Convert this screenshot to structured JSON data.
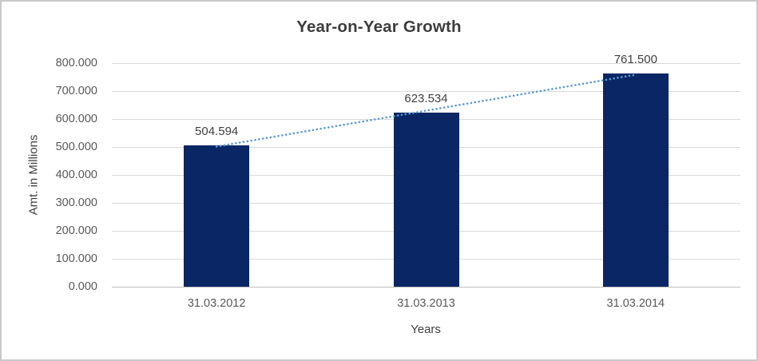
{
  "chart_data": {
    "type": "bar",
    "title": "Year-on-Year Growth",
    "xlabel": "Years",
    "ylabel": "Amt. in Millions",
    "categories": [
      "31.03.2012",
      "31.03.2013",
      "31.03.2014"
    ],
    "values": [
      504.594,
      623.534,
      761.5
    ],
    "data_labels": [
      "504.594",
      "623.534",
      "761.500"
    ],
    "y_ticks": [
      0,
      100,
      200,
      300,
      400,
      500,
      600,
      700,
      800
    ],
    "y_tick_labels": [
      "0.000",
      "100.000",
      "200.000",
      "300.000",
      "400.000",
      "500.000",
      "600.000",
      "700.000",
      "800.000"
    ],
    "ylim": [
      0,
      800
    ],
    "grid": true,
    "legend": "none",
    "trendline": {
      "fit": "linear",
      "style": "dotted"
    },
    "colors": {
      "bar": "#0a2664",
      "trendline": "#5b9bd5",
      "gridline": "#d9d9d9",
      "axis_line": "#bfbfbf",
      "title_text": "#3d3d3d",
      "tick_text": "#595959",
      "label_text": "#404040",
      "frame_border": "#c9c9c9",
      "background": "#ffffff"
    }
  }
}
